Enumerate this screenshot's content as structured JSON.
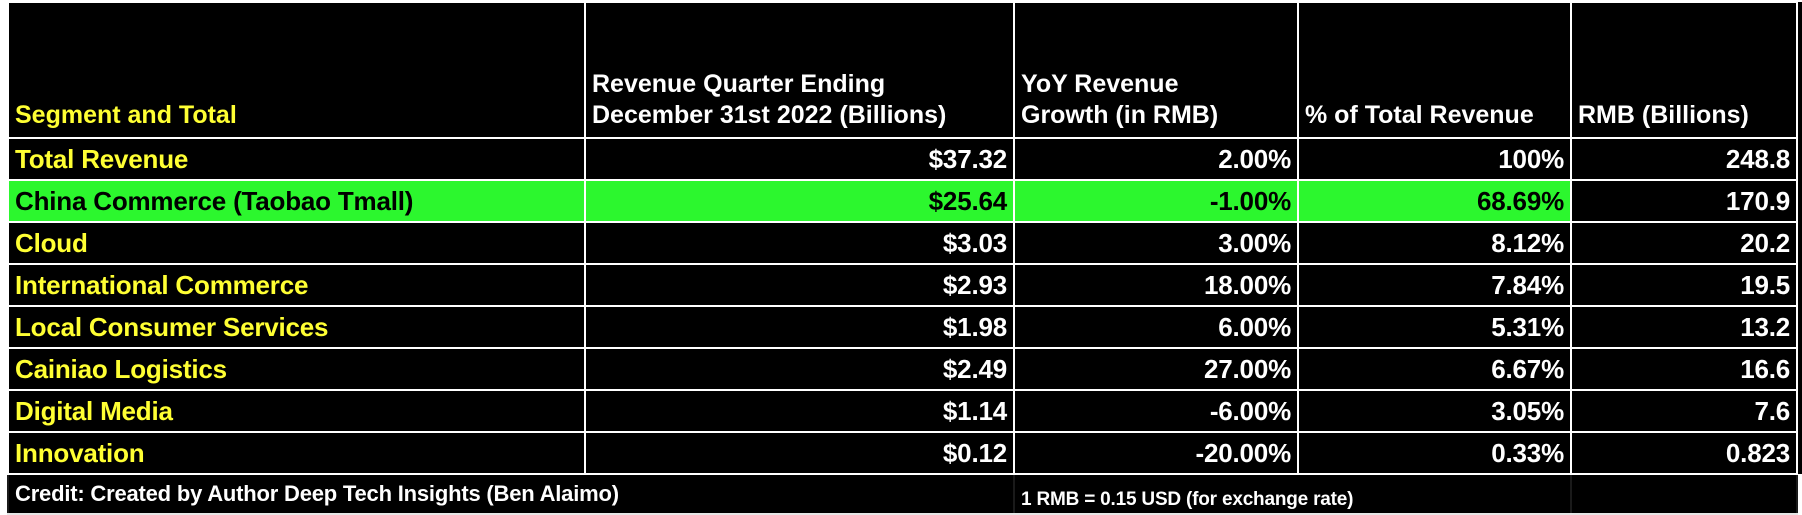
{
  "table": {
    "headers": [
      "Segment and Total",
      "Revenue Quarter Ending December 31st 2022 (Billions)",
      "YoY Revenue Growth (in RMB)",
      "% of Total Revenue",
      "RMB (Billions)"
    ],
    "header_lines": {
      "col2_line1": "Revenue Quarter Ending",
      "col2_line2": "December 31st 2022 (Billions)",
      "col3_line1": "YoY Revenue",
      "col3_line2": "Growth (in RMB)"
    },
    "rows": [
      {
        "segment": "Total Revenue",
        "revenue_usd": "$37.32",
        "yoy_growth": "2.00%",
        "pct_total": "100%",
        "rmb": "248.8"
      },
      {
        "segment": "China Commerce (Taobao Tmall)",
        "revenue_usd": "$25.64",
        "yoy_growth": "-1.00%",
        "pct_total": "68.69%",
        "rmb": "170.9",
        "highlighted": true
      },
      {
        "segment": "Cloud",
        "revenue_usd": "$3.03",
        "yoy_growth": "3.00%",
        "pct_total": "8.12%",
        "rmb": "20.2"
      },
      {
        "segment": "International Commerce",
        "revenue_usd": "$2.93",
        "yoy_growth": "18.00%",
        "pct_total": "7.84%",
        "rmb": "19.5"
      },
      {
        "segment": "Local Consumer Services",
        "revenue_usd": "$1.98",
        "yoy_growth": "6.00%",
        "pct_total": "5.31%",
        "rmb": "13.2"
      },
      {
        "segment": "Cainiao Logistics",
        "revenue_usd": "$2.49",
        "yoy_growth": "27.00%",
        "pct_total": "6.67%",
        "rmb": "16.6"
      },
      {
        "segment": "Digital Media",
        "revenue_usd": "$1.14",
        "yoy_growth": "-6.00%",
        "pct_total": "3.05%",
        "rmb": "7.6"
      },
      {
        "segment": "Innovation",
        "revenue_usd": "$0.12",
        "yoy_growth": "-20.00%",
        "pct_total": "0.33%",
        "rmb": "0.823"
      }
    ],
    "footer": {
      "credit": "Credit: Created by Author Deep Tech Insights (Ben Alaimo)",
      "exchange_rate": "1 RMB = 0.15 USD (for exchange rate)"
    }
  },
  "colors": {
    "background": "#000000",
    "grid": "#ffffff",
    "segment_text": "#ffff33",
    "value_text": "#ffffff",
    "highlight_bg": "#2cf72e",
    "highlight_text": "#000000"
  },
  "chart_data": {
    "type": "table",
    "title": "",
    "columns": [
      "Segment and Total",
      "Revenue Quarter Ending December 31st 2022 (Billions)",
      "YoY Revenue Growth (in RMB)",
      "% of Total Revenue",
      "RMB (Billions)"
    ],
    "rows": [
      [
        "Total Revenue",
        37.32,
        2.0,
        100,
        248.8
      ],
      [
        "China Commerce (Taobao Tmall)",
        25.64,
        -1.0,
        68.69,
        170.9
      ],
      [
        "Cloud",
        3.03,
        3.0,
        8.12,
        20.2
      ],
      [
        "International Commerce",
        2.93,
        18.0,
        7.84,
        19.5
      ],
      [
        "Local Consumer Services",
        1.98,
        6.0,
        5.31,
        13.2
      ],
      [
        "Cainiao Logistics",
        2.49,
        27.0,
        6.67,
        16.6
      ],
      [
        "Digital Media",
        1.14,
        -6.0,
        3.05,
        7.6
      ],
      [
        "Innovation",
        0.12,
        -20.0,
        0.33,
        0.823
      ]
    ],
    "units": {
      "revenue_usd": "USD billions",
      "yoy_growth": "percent",
      "pct_total": "percent",
      "rmb": "RMB billions"
    },
    "highlighted_row": "China Commerce (Taobao Tmall)",
    "notes": [
      "Credit: Created by Author Deep Tech Insights (Ben Alaimo)",
      "1 RMB = 0.15 USD (for exchange rate)"
    ]
  }
}
